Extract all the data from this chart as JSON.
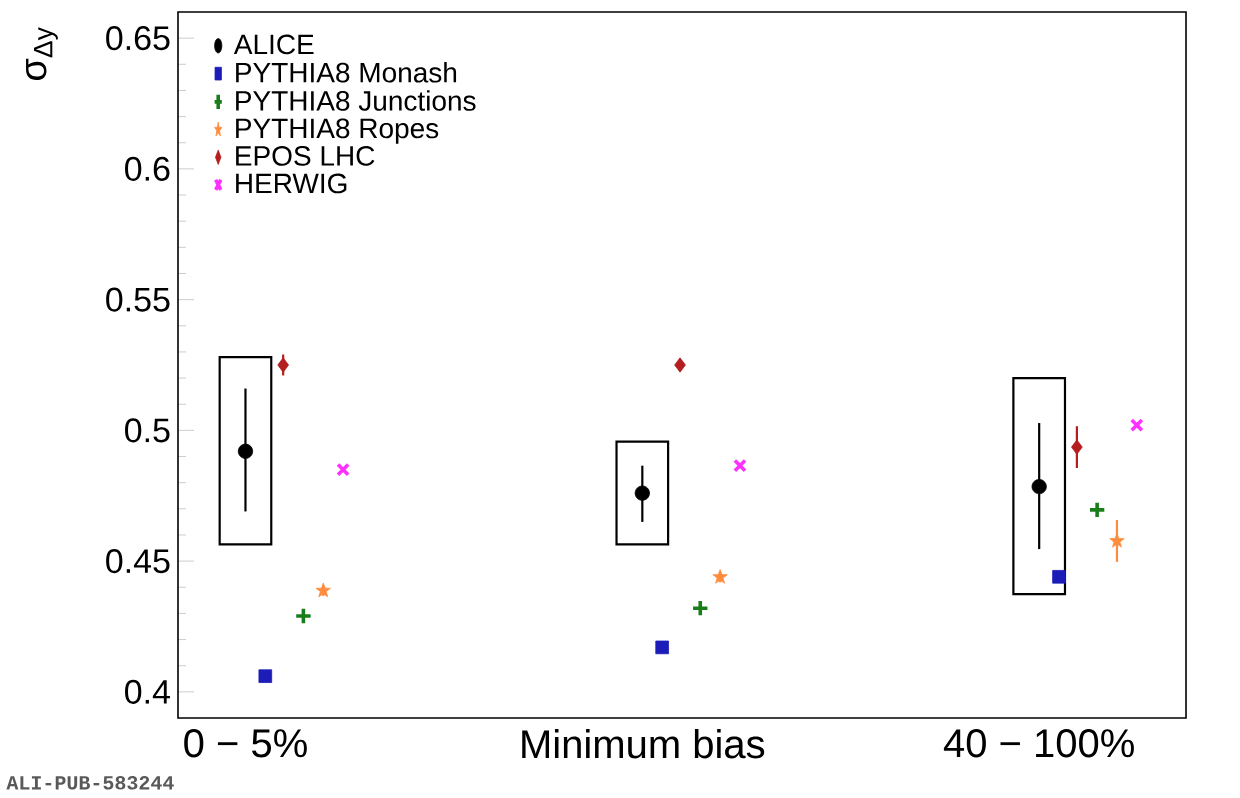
{
  "chart_data": {
    "type": "scatter",
    "ylabel": "σ$_{Δy}$",
    "categories": [
      "0 − 5%",
      "Minimum bias",
      "40 − 100%"
    ],
    "series": [
      {
        "name": "ALICE",
        "color": "#000000",
        "marker": "circle",
        "values": [
          0.492,
          0.476,
          0.4785
        ],
        "errors": [
          [
            0.469,
            0.516
          ],
          [
            0.465,
            0.4865
          ],
          [
            0.4546,
            0.5028
          ]
        ]
      },
      {
        "name": "PYTHIA8 Monash",
        "color": "#1c1cb8",
        "marker": "square",
        "values": [
          0.406,
          0.417,
          0.444
        ]
      },
      {
        "name": "PYTHIA8 Junctions",
        "color": "#1a7d1a",
        "marker": "plus",
        "values": [
          0.429,
          0.432,
          0.4696
        ]
      },
      {
        "name": "PYTHIA8 Ropes",
        "color": "#ff8c3c",
        "marker": "star",
        "values": [
          0.4387,
          0.4439,
          0.4577
        ],
        "errors": [
          0.002,
          0.002,
          0.008
        ]
      },
      {
        "name": "EPOS LHC",
        "color": "#b41e1e",
        "marker": "diamond",
        "values": [
          0.525,
          0.525,
          0.4936
        ],
        "errors": [
          0.004,
          0.002,
          0.008
        ]
      },
      {
        "name": "HERWIG",
        "color": "#ff30ff",
        "marker": "cross",
        "values": [
          0.485,
          0.4865,
          0.502
        ]
      },
      {
        "type": "bar",
        "color": "#000000",
        "base": [
          0.4564,
          0.4564,
          0.4374
        ],
        "values": [
          0.0716,
          0.0393,
          0.0826
        ]
      }
    ],
    "ylim": [
      0.39,
      0.66
    ],
    "yticks": [
      0.4,
      0.45,
      0.5,
      0.55,
      0.6,
      0.65
    ],
    "legend": "top left",
    "annotations": [
      "ALI-PUB-583244"
    ]
  }
}
